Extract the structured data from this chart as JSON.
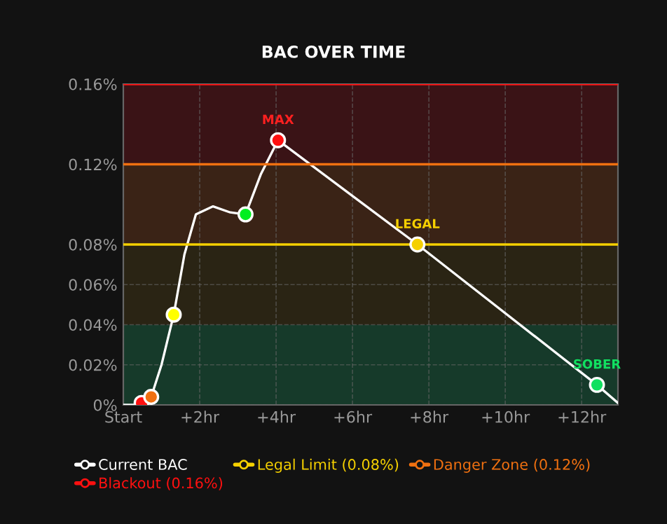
{
  "chart_data": {
    "type": "line",
    "title": "BAC OVER TIME",
    "xlim": [
      0,
      12.95
    ],
    "ylim": [
      0,
      0.16
    ],
    "xticks": [
      {
        "value": 0,
        "label": "Start"
      },
      {
        "value": 2,
        "label": "+2hr"
      },
      {
        "value": 4,
        "label": "+4hr"
      },
      {
        "value": 6,
        "label": "+6hr"
      },
      {
        "value": 8,
        "label": "+8hr"
      },
      {
        "value": 10,
        "label": "+10hr"
      },
      {
        "value": 12,
        "label": "+12hr"
      }
    ],
    "yticks": [
      {
        "value": 0,
        "label": "0%"
      },
      {
        "value": 0.02,
        "label": "0.02%"
      },
      {
        "value": 0.04,
        "label": "0.04%"
      },
      {
        "value": 0.06,
        "label": "0.06%"
      },
      {
        "value": 0.08,
        "label": "0.08%"
      },
      {
        "value": 0.12,
        "label": "0.12%"
      },
      {
        "value": 0.16,
        "label": "0.16%"
      }
    ],
    "grid": true,
    "legend": "bottom",
    "bands": [
      {
        "axis": "y",
        "from": 0,
        "to": 0.04,
        "color": "#163a2a"
      },
      {
        "axis": "y",
        "from": 0.04,
        "to": 0.08,
        "color": "#2a2414"
      },
      {
        "axis": "y",
        "from": 0.08,
        "to": 0.12,
        "color": "#3a2316"
      },
      {
        "axis": "y",
        "from": 0.12,
        "to": 0.16,
        "color": "#3a1316"
      }
    ],
    "series": [
      {
        "name": "Current BAC",
        "color": "#ffffff",
        "x": [
          0,
          0.45,
          0.73,
          1.0,
          1.32,
          1.6,
          1.9,
          2.35,
          2.8,
          3.2,
          3.6,
          4.05,
          7.7,
          12.4,
          12.95
        ],
        "values": [
          0,
          0,
          0.004,
          0.02,
          0.045,
          0.075,
          0.095,
          0.099,
          0.096,
          0.095,
          0.115,
          0.132,
          0.08,
          0.01,
          0.001
        ]
      },
      {
        "name": "Legal Limit (0.08%)",
        "color": "#f5d000",
        "x": [
          0,
          12.95
        ],
        "values": [
          0.08,
          0.08
        ]
      },
      {
        "name": "Danger Zone (0.12%)",
        "color": "#f07010",
        "x": [
          0,
          12.95
        ],
        "values": [
          0.12,
          0.12
        ]
      },
      {
        "name": "Blackout (0.16%)",
        "color": "#ff1010",
        "x": [
          0,
          12.95
        ],
        "values": [
          0.16,
          0.16
        ]
      },
      {
        "type": "scatter",
        "x": [
          0.48,
          0.73,
          1.32,
          3.2,
          4.05,
          7.7,
          12.4
        ],
        "values": [
          0.001,
          0.004,
          0.045,
          0.095,
          0.132,
          0.08,
          0.01
        ],
        "colors": [
          "#ff1010",
          "#f07010",
          "#ffff00",
          "#00ee20",
          "#ff1010",
          "#f5d000",
          "#10e060"
        ]
      }
    ],
    "annotations": [
      {
        "text": "MAX",
        "x": 4.05,
        "y": 0.132
      },
      {
        "text": "LEGAL",
        "x": 7.7,
        "y": 0.08
      },
      {
        "text": "SOBER",
        "x": 12.4,
        "y": 0.01
      }
    ]
  }
}
